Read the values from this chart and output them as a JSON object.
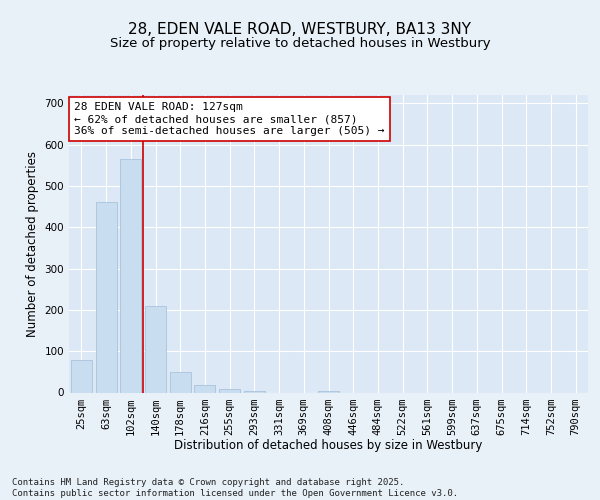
{
  "title1": "28, EDEN VALE ROAD, WESTBURY, BA13 3NY",
  "title2": "Size of property relative to detached houses in Westbury",
  "xlabel": "Distribution of detached houses by size in Westbury",
  "ylabel": "Number of detached properties",
  "categories": [
    "25sqm",
    "63sqm",
    "102sqm",
    "140sqm",
    "178sqm",
    "216sqm",
    "255sqm",
    "293sqm",
    "331sqm",
    "369sqm",
    "408sqm",
    "446sqm",
    "484sqm",
    "522sqm",
    "561sqm",
    "599sqm",
    "637sqm",
    "675sqm",
    "714sqm",
    "752sqm",
    "790sqm"
  ],
  "values": [
    78,
    462,
    565,
    210,
    50,
    18,
    8,
    4,
    0,
    0,
    4,
    0,
    0,
    0,
    0,
    0,
    0,
    0,
    0,
    0,
    0
  ],
  "bar_color": "#c9ddf0",
  "bar_edge_color": "#a0bcd8",
  "ref_line_color": "#cc0000",
  "annotation_text": "28 EDEN VALE ROAD: 127sqm\n← 62% of detached houses are smaller (857)\n36% of semi-detached houses are larger (505) →",
  "annotation_box_color": "#ffffff",
  "annotation_box_edge": "#cc0000",
  "ylim": [
    0,
    720
  ],
  "yticks": [
    0,
    100,
    200,
    300,
    400,
    500,
    600,
    700
  ],
  "bg_color": "#dce8f5",
  "fig_bg_color": "#e8f0f8",
  "grid_color": "#ffffff",
  "footer": "Contains HM Land Registry data © Crown copyright and database right 2025.\nContains public sector information licensed under the Open Government Licence v3.0.",
  "title_fontsize": 11,
  "subtitle_fontsize": 9.5,
  "axis_label_fontsize": 8.5,
  "tick_fontsize": 7.5,
  "annotation_fontsize": 8,
  "footer_fontsize": 6.5
}
